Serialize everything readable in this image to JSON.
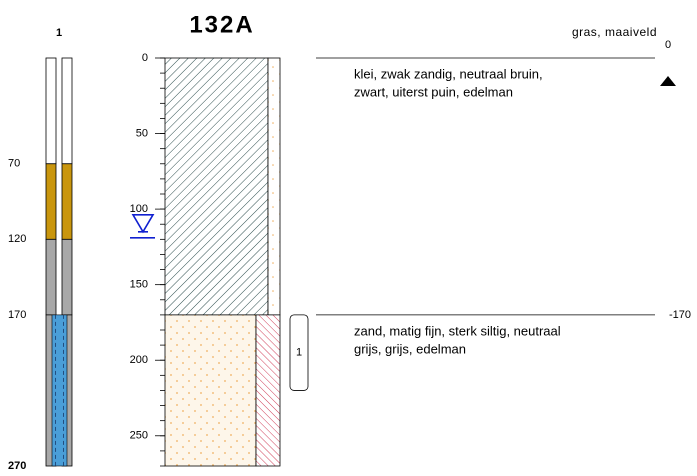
{
  "borehole": {
    "id": "132A",
    "well_label": "1",
    "depth_axis": {
      "ylim": [
        0,
        270
      ],
      "ticks": [
        0,
        50,
        100,
        150,
        200,
        250
      ],
      "minor_tick_step": 10
    },
    "well_sections": [
      {
        "top": 0,
        "bottom": 70,
        "color": "#ffffff"
      },
      {
        "top": 70,
        "bottom": 120,
        "color": "#c9960e"
      },
      {
        "top": 120,
        "bottom": 170,
        "color": "#a8a8a8"
      },
      {
        "top": 170,
        "bottom": 270,
        "color": "#a8a8a8",
        "filter_color": "#4a9ed8"
      }
    ],
    "well_depth_labels": [
      70,
      120,
      170,
      270
    ],
    "surface_label": "gras, maaiveld",
    "layers": [
      {
        "top": 0,
        "bottom": 170,
        "level_label": 0,
        "description": [
          "klei, zwak zandig, neutraal bruin,",
          "zwart, uiterst puin, edelman"
        ]
      },
      {
        "top": 170,
        "bottom": 270,
        "level_label": -170,
        "description": [
          "zand, matig fijn, sterk siltig, neutraal",
          "grijs, grijs, edelman"
        ]
      }
    ],
    "water_level": 119,
    "sample": {
      "label": "1",
      "top": 170,
      "bottom": 220
    }
  }
}
